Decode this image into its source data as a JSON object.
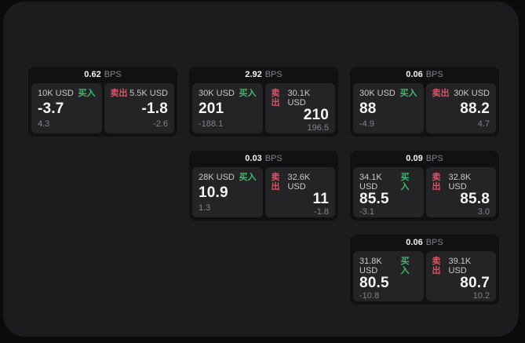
{
  "labels": {
    "bps": "BPS",
    "buy": "买入",
    "sell": "卖出"
  },
  "colors": {
    "buy_green": "#3fb96e",
    "sell_red": "#dd5365",
    "bg_outer": "#0b0b0c",
    "bg_panel": "#1c1c1e",
    "bg_card": "#111113",
    "bg_subpanel": "#242427",
    "text_bright": "#f4f4f5",
    "text_mid": "#c9c9cd",
    "text_dim": "#82828a"
  },
  "cards": [
    {
      "bps": "0.62",
      "buy": {
        "amount": "10K USD",
        "price": "-3.7",
        "delta": "4.3"
      },
      "sell": {
        "amount": "5.5K USD",
        "price": "-1.8",
        "delta": "-2.6"
      }
    },
    {
      "bps": "2.92",
      "buy": {
        "amount": "30K USD",
        "price": "201",
        "delta": "-188.1"
      },
      "sell": {
        "amount": "30.1K USD",
        "price": "210",
        "delta": "196.5"
      }
    },
    {
      "bps": "0.06",
      "buy": {
        "amount": "30K USD",
        "price": "88",
        "delta": "-4.9"
      },
      "sell": {
        "amount": "30K USD",
        "price": "88.2",
        "delta": "4.7"
      }
    },
    {
      "bps": "0.03",
      "buy": {
        "amount": "28K USD",
        "price": "10.9",
        "delta": "1.3"
      },
      "sell": {
        "amount": "32.6K USD",
        "price": "11",
        "delta": "-1.8"
      }
    },
    {
      "bps": "0.09",
      "buy": {
        "amount": "34.1K USD",
        "price": "85.5",
        "delta": "-3.1"
      },
      "sell": {
        "amount": "32.8K USD",
        "price": "85.8",
        "delta": "3.0"
      }
    },
    {
      "bps": "0.06",
      "buy": {
        "amount": "31.8K USD",
        "price": "80.5",
        "delta": "-10.8"
      },
      "sell": {
        "amount": "39.1K USD",
        "price": "80.7",
        "delta": "10.2"
      }
    }
  ]
}
